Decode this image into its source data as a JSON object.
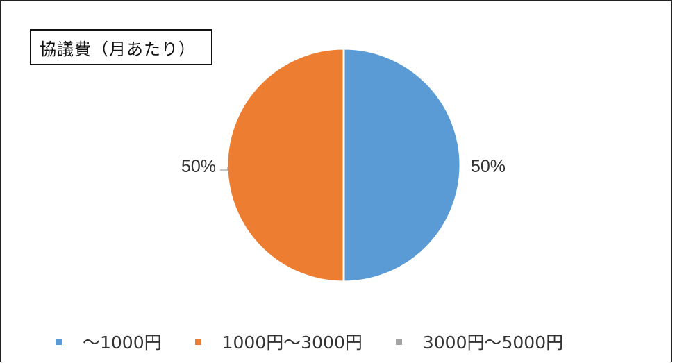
{
  "chart_data": {
    "type": "pie",
    "title": "協議費（月あたり）",
    "categories": [
      "～1000円",
      "1000円～3000円",
      "3000円～5000円"
    ],
    "values": [
      50,
      50,
      0
    ],
    "data_labels": [
      "50%",
      "50%",
      ""
    ],
    "colors": [
      "#5B9BD5",
      "#ED7D31",
      "#A5A5A5"
    ],
    "legend_position": "bottom"
  }
}
